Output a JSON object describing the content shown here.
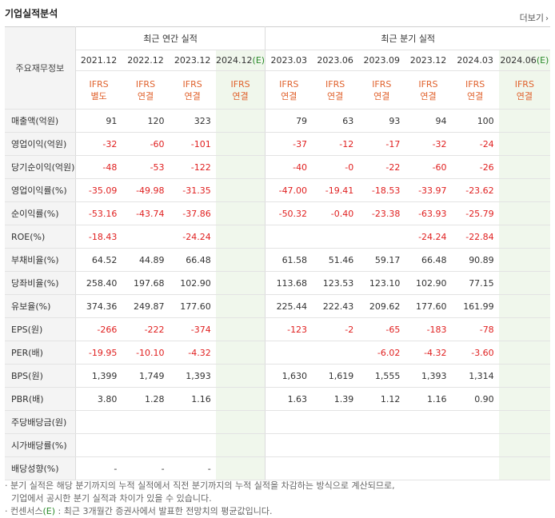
{
  "header": {
    "title": "기업실적분석",
    "more_label": "더보기",
    "more_icon": "chevron-right-icon"
  },
  "table": {
    "row_header_label": "주요재무정보",
    "annual_group": "최근 연간 실적",
    "quarter_group": "최근 분기 실적",
    "periods": [
      {
        "label": "2021.12",
        "est": false,
        "ifrs": "IFRS",
        "basis": "별도"
      },
      {
        "label": "2022.12",
        "est": false,
        "ifrs": "IFRS",
        "basis": "연결"
      },
      {
        "label": "2023.12",
        "est": false,
        "ifrs": "IFRS",
        "basis": "연결"
      },
      {
        "label": "2024.12",
        "est": true,
        "est_mark": "(E)",
        "ifrs": "IFRS",
        "basis": "연결"
      },
      {
        "label": "2023.03",
        "est": false,
        "ifrs": "IFRS",
        "basis": "연결"
      },
      {
        "label": "2023.06",
        "est": false,
        "ifrs": "IFRS",
        "basis": "연결"
      },
      {
        "label": "2023.09",
        "est": false,
        "ifrs": "IFRS",
        "basis": "연결"
      },
      {
        "label": "2023.12",
        "est": false,
        "ifrs": "IFRS",
        "basis": "연결"
      },
      {
        "label": "2024.03",
        "est": false,
        "ifrs": "IFRS",
        "basis": "연결"
      },
      {
        "label": "2024.06",
        "est": true,
        "est_mark": "(E)",
        "ifrs": "IFRS",
        "basis": "연결"
      }
    ],
    "rows": [
      {
        "label": "매출액(억원)",
        "group_start": true,
        "values": [
          "91",
          "120",
          "323",
          "",
          "79",
          "63",
          "93",
          "94",
          "100",
          ""
        ]
      },
      {
        "label": "영업이익(억원)",
        "values": [
          "-32",
          "-60",
          "-101",
          "",
          "-37",
          "-12",
          "-17",
          "-32",
          "-24",
          ""
        ]
      },
      {
        "label": "당기순이익(억원)",
        "values": [
          "-48",
          "-53",
          "-122",
          "",
          "-40",
          "-0",
          "-22",
          "-60",
          "-26",
          ""
        ]
      },
      {
        "label": "영업이익률(%)",
        "group_start": true,
        "values": [
          "-35.09",
          "-49.98",
          "-31.35",
          "",
          "-47.00",
          "-19.41",
          "-18.53",
          "-33.97",
          "-23.62",
          ""
        ]
      },
      {
        "label": "순이익률(%)",
        "values": [
          "-53.16",
          "-43.74",
          "-37.86",
          "",
          "-50.32",
          "-0.40",
          "-23.38",
          "-63.93",
          "-25.79",
          ""
        ]
      },
      {
        "label": "ROE(%)",
        "values": [
          "-18.43",
          "",
          "-24.24",
          "",
          "",
          "",
          "",
          "-24.24",
          "-22.84",
          ""
        ]
      },
      {
        "label": "부채비율(%)",
        "group_start": true,
        "values": [
          "64.52",
          "44.89",
          "66.48",
          "",
          "61.58",
          "51.46",
          "59.17",
          "66.48",
          "90.89",
          ""
        ]
      },
      {
        "label": "당좌비율(%)",
        "values": [
          "258.40",
          "197.68",
          "102.90",
          "",
          "113.68",
          "123.53",
          "123.10",
          "102.90",
          "77.15",
          ""
        ]
      },
      {
        "label": "유보율(%)",
        "values": [
          "374.36",
          "249.87",
          "177.60",
          "",
          "225.44",
          "222.43",
          "209.62",
          "177.60",
          "161.99",
          ""
        ]
      },
      {
        "label": "EPS(원)",
        "group_start": true,
        "values": [
          "-266",
          "-222",
          "-374",
          "",
          "-123",
          "-2",
          "-65",
          "-183",
          "-78",
          ""
        ]
      },
      {
        "label": "PER(배)",
        "values": [
          "-19.95",
          "-10.10",
          "-4.32",
          "",
          "",
          "",
          "-6.02",
          "-4.32",
          "-3.60",
          ""
        ]
      },
      {
        "label": "BPS(원)",
        "values": [
          "1,399",
          "1,749",
          "1,393",
          "",
          "1,630",
          "1,619",
          "1,555",
          "1,393",
          "1,314",
          ""
        ]
      },
      {
        "label": "PBR(배)",
        "values": [
          "3.80",
          "1.28",
          "1.16",
          "",
          "1.63",
          "1.39",
          "1.12",
          "1.16",
          "0.90",
          ""
        ]
      },
      {
        "label": "주당배당금(원)",
        "group_start": true,
        "values": [
          "",
          "",
          "",
          "",
          "",
          "",
          "",
          "",
          "",
          ""
        ]
      },
      {
        "label": "시가배당률(%)",
        "values": [
          "",
          "",
          "",
          "",
          "",
          "",
          "",
          "",
          "",
          ""
        ]
      },
      {
        "label": "배당성향(%)",
        "values": [
          "-",
          "-",
          "-",
          "",
          "",
          "",
          "",
          "",
          "",
          ""
        ]
      }
    ]
  },
  "notes": {
    "line1": "· 분기 실적은 해당 분기까지의 누적 실적에서 직전 분기까지의 누적 실적을 차감하는 방식으로 계산되므로,",
    "line2": "기업에서 공시한 분기 실적과 차이가 있을 수 있습니다.",
    "line3_prefix": "· 컨센서스",
    "line3_mark": "(E)",
    "line3_suffix": " : 최근 3개월간 증권사에서 발표한 전망치의 평균값입니다."
  }
}
